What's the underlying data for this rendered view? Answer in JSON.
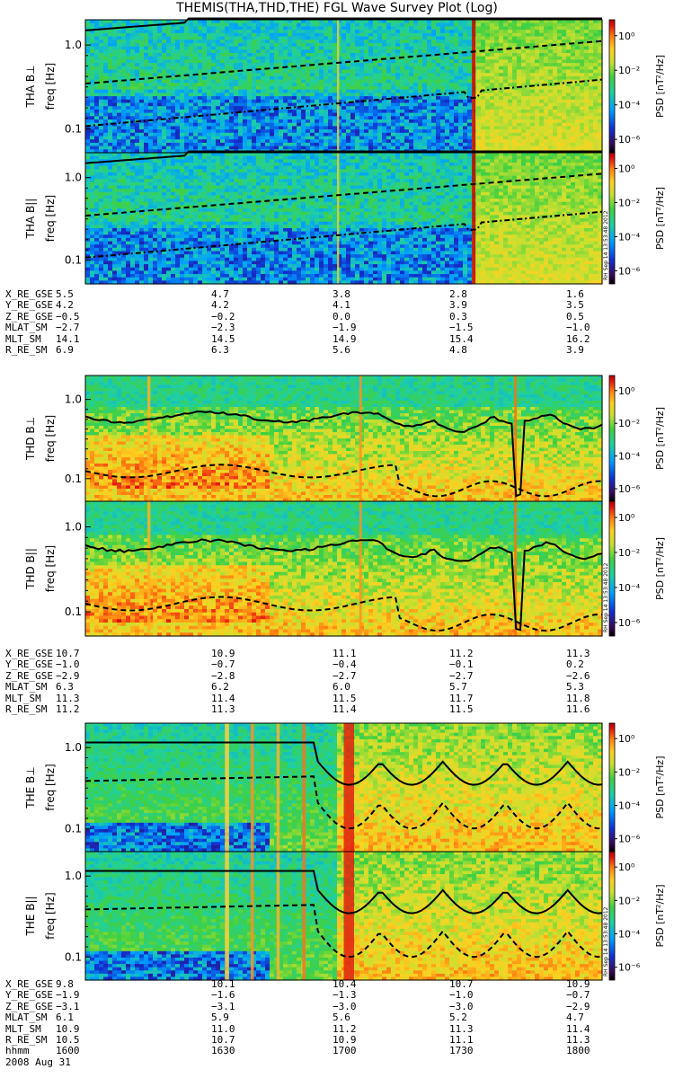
{
  "title": "THEMIS(THA,THD,THE) FGL Wave Survey Plot (Log)",
  "date": "2008 Aug 31",
  "colorbar": {
    "label": "PSD [nT²/Hz]",
    "ticks": [
      "10⁰",
      "10⁻²",
      "10⁻⁴",
      "10⁻⁶"
    ],
    "tick_exponents": [
      0,
      -2,
      -4,
      -6
    ]
  },
  "stamp": "RH Sep 14 13:53:48 2012",
  "chart_data": [
    {
      "type": "heatmap",
      "panel": "THA B⊥",
      "ylabel": "THA B⊥",
      "yunit": "freq [Hz]",
      "yticks": [
        "1.0",
        "0.1"
      ],
      "yscale": "log"
    },
    {
      "type": "heatmap",
      "panel": "THA B||",
      "ylabel": "THA B||",
      "yunit": "freq [Hz]",
      "yticks": [
        "1.0",
        "0.1"
      ],
      "yscale": "log"
    },
    {
      "type": "heatmap",
      "panel": "THD B⊥",
      "ylabel": "THD B⊥",
      "yunit": "freq [Hz]",
      "yticks": [
        "1.0",
        "0.1"
      ],
      "yscale": "log"
    },
    {
      "type": "heatmap",
      "panel": "THD B||",
      "ylabel": "THD B||",
      "yunit": "freq [Hz]",
      "yticks": [
        "1.0",
        "0.1"
      ],
      "yscale": "log"
    },
    {
      "type": "heatmap",
      "panel": "THE B⊥",
      "ylabel": "THE B⊥",
      "yunit": "freq [Hz]",
      "yticks": [
        "1.0",
        "0.1"
      ],
      "yscale": "log"
    },
    {
      "type": "heatmap",
      "panel": "THE B||",
      "ylabel": "THE B||",
      "yunit": "freq [Hz]",
      "yticks": [
        "1.0",
        "0.1"
      ],
      "yscale": "log"
    }
  ],
  "ephemeris": [
    {
      "probe": "THA",
      "rows": [
        {
          "name": "X_RE_GSE",
          "values": [
            "5.5",
            "4.7",
            "3.8",
            "2.8",
            "1.6"
          ]
        },
        {
          "name": "Y_RE_GSE",
          "values": [
            "4.2",
            "4.2",
            "4.1",
            "3.9",
            "3.5"
          ]
        },
        {
          "name": "Z_RE_GSE",
          "values": [
            "−0.5",
            "−0.2",
            "0.0",
            "0.3",
            "0.5"
          ]
        },
        {
          "name": "MLAT_SM",
          "values": [
            "−2.7",
            "−2.3",
            "−1.9",
            "−1.5",
            "−1.0"
          ]
        },
        {
          "name": "MLT_SM",
          "values": [
            "14.1",
            "14.5",
            "14.9",
            "15.4",
            "16.2"
          ]
        },
        {
          "name": "R_RE_SM",
          "values": [
            "6.9",
            "6.3",
            "5.6",
            "4.8",
            "3.9"
          ]
        }
      ]
    },
    {
      "probe": "THD",
      "rows": [
        {
          "name": "X_RE_GSE",
          "values": [
            "10.7",
            "10.9",
            "11.1",
            "11.2",
            "11.3"
          ]
        },
        {
          "name": "Y_RE_GSE",
          "values": [
            "−1.0",
            "−0.7",
            "−0.4",
            "−0.1",
            "0.2"
          ]
        },
        {
          "name": "Z_RE_GSE",
          "values": [
            "−2.9",
            "−2.8",
            "−2.7",
            "−2.7",
            "−2.6"
          ]
        },
        {
          "name": "MLAT_SM",
          "values": [
            "6.3",
            "6.2",
            "6.0",
            "5.7",
            "5.3"
          ]
        },
        {
          "name": "MLT_SM",
          "values": [
            "11.3",
            "11.4",
            "11.5",
            "11.7",
            "11.8"
          ]
        },
        {
          "name": "R_RE_SM",
          "values": [
            "11.2",
            "11.3",
            "11.4",
            "11.5",
            "11.6"
          ]
        }
      ]
    },
    {
      "probe": "THE",
      "rows": [
        {
          "name": "X_RE_GSE",
          "values": [
            "9.8",
            "10.1",
            "10.4",
            "10.7",
            "10.9"
          ]
        },
        {
          "name": "Y_RE_GSE",
          "values": [
            "−1.9",
            "−1.6",
            "−1.3",
            "−1.0",
            "−0.7"
          ]
        },
        {
          "name": "Z_RE_GSE",
          "values": [
            "−3.1",
            "−3.1",
            "−3.0",
            "−3.0",
            "−2.9"
          ]
        },
        {
          "name": "MLAT_SM",
          "values": [
            "6.1",
            "5.9",
            "5.6",
            "5.2",
            "4.7"
          ]
        },
        {
          "name": "MLT_SM",
          "values": [
            "10.9",
            "11.0",
            "11.2",
            "11.3",
            "11.4"
          ]
        },
        {
          "name": "R_RE_SM",
          "values": [
            "10.5",
            "10.7",
            "10.9",
            "11.1",
            "11.3"
          ]
        },
        {
          "name": "hhmm",
          "values": [
            "1600",
            "1630",
            "1700",
            "1730",
            "1800"
          ]
        }
      ]
    }
  ]
}
